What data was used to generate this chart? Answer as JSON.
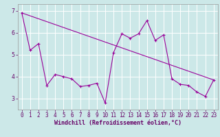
{
  "xlabel": "Windchill (Refroidissement éolien,°C)",
  "background_color": "#cce8e8",
  "line_color": "#990099",
  "grid_color": "#ffffff",
  "xlim": [
    -0.5,
    23.5
  ],
  "ylim": [
    2.5,
    7.3
  ],
  "yticks": [
    3,
    4,
    5,
    6,
    7
  ],
  "xticks": [
    0,
    1,
    2,
    3,
    4,
    5,
    6,
    7,
    8,
    9,
    10,
    11,
    12,
    13,
    14,
    15,
    16,
    17,
    18,
    19,
    20,
    21,
    22,
    23
  ],
  "hours": [
    0,
    1,
    2,
    3,
    4,
    5,
    6,
    7,
    8,
    9,
    10,
    11,
    12,
    13,
    14,
    15,
    16,
    17,
    18,
    19,
    20,
    21,
    22,
    23
  ],
  "values": [
    6.9,
    5.2,
    5.5,
    3.6,
    4.1,
    4.0,
    3.9,
    3.55,
    3.6,
    3.7,
    2.8,
    5.1,
    5.95,
    5.75,
    5.95,
    6.55,
    5.65,
    5.9,
    3.9,
    3.65,
    3.6,
    3.3,
    3.1,
    3.85
  ],
  "trend_start_x": 0,
  "trend_start_y": 6.9,
  "trend_end_x": 23,
  "trend_end_y": 3.85,
  "xlabel_fontsize": 6.0,
  "tick_fontsize": 5.5,
  "label_color": "#660066",
  "spine_color": "#999999"
}
